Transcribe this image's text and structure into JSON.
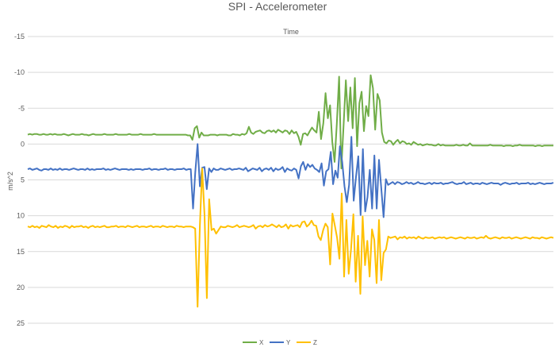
{
  "chart_data": {
    "type": "line",
    "title": "SPI - Accelerometer",
    "xlabel": "Time",
    "ylabel": "m/s^2",
    "y_axis_reversed": true,
    "ylim": [
      -15,
      25
    ],
    "yticks": [
      -15,
      -10,
      -5,
      0,
      5,
      10,
      15,
      20,
      25
    ],
    "ytick_labels": [
      "-15",
      "-10",
      "-5",
      "0",
      "5",
      "10",
      "15",
      "20",
      "25"
    ],
    "grid": true,
    "legend_position": "bottom",
    "series": [
      {
        "name": "X",
        "color": "#70AD47",
        "values": [
          -1.3,
          -1.4,
          -1.3,
          -1.4,
          -1.4,
          -1.3,
          -1.3,
          -1.4,
          -1.3,
          -1.3,
          -1.4,
          -1.3,
          -1.4,
          -1.3,
          -1.3,
          -1.3,
          -1.4,
          -1.3,
          -1.2,
          -1.3,
          -1.4,
          -1.3,
          -1.3,
          -1.3,
          -1.4,
          -1.3,
          -1.3,
          -1.2,
          -1.3,
          -1.4,
          -1.3,
          -1.3,
          -1.3,
          -1.3,
          -1.4,
          -1.3,
          -1.3,
          -1.3,
          -1.3,
          -1.4,
          -1.3,
          -1.3,
          -1.3,
          -1.3,
          -1.3,
          -1.4,
          -1.3,
          -1.3,
          -1.3,
          -1.3,
          -1.4,
          -1.3,
          -1.3,
          -1.3,
          -1.3,
          -1.3,
          -1.4,
          -1.3,
          -1.3,
          -1.3,
          -1.3,
          -1.3,
          -1.3,
          -1.3,
          -1.3,
          -1.3,
          -1.3,
          -1.3,
          -1.3,
          -1.3,
          -1.3,
          -1.2,
          -1.2,
          -0.6,
          -2.2,
          -2.5,
          -0.9,
          -1.6,
          -1.2,
          -1.2,
          -1.2,
          -1.3,
          -1.3,
          -1.3,
          -1.2,
          -1.3,
          -1.3,
          -1.3,
          -1.3,
          -1.2,
          -1.2,
          -1.4,
          -1.3,
          -1.3,
          -1.2,
          -1.4,
          -1.3,
          -1.5,
          -2.4,
          -1.6,
          -1.4,
          -1.7,
          -1.8,
          -1.9,
          -1.6,
          -1.5,
          -1.8,
          -1.9,
          -1.7,
          -1.9,
          -1.6,
          -2.0,
          -1.8,
          -1.6,
          -1.9,
          -1.8,
          -1.4,
          -1.9,
          -1.5,
          -1.7,
          -1.0,
          0.1,
          -1.4,
          -1.5,
          -1.2,
          -1.8,
          -2.3,
          -1.9,
          -1.6,
          -4.5,
          -0.7,
          -2.9,
          -7.1,
          -3.6,
          -5.4,
          -0.3,
          2.5,
          -2.8,
          -9.4,
          3.4,
          -2.7,
          -8.9,
          -3.2,
          -7.9,
          -2.2,
          -9.2,
          0.3,
          -5.7,
          -7.3,
          -1.8,
          -5.3,
          -3.9,
          -9.6,
          -7.8,
          -2.0,
          -7.0,
          -6.1,
          -1.6,
          -0.3,
          -0.1,
          -0.5,
          -0.4,
          0.1,
          -0.3,
          -0.6,
          -0.1,
          -0.4,
          -0.3,
          0.0,
          -0.1,
          0.1,
          -0.3,
          -0.1,
          0.1,
          0.0,
          0.2,
          0.1,
          0.0,
          0.1,
          0.1,
          0.2,
          0.2,
          0.0,
          0.2,
          0.1,
          0.2,
          0.2,
          0.2,
          0.2,
          0.2,
          0.1,
          0.2,
          0.2,
          0.1,
          0.2,
          0.2,
          -0.1,
          0.2,
          0.2,
          0.2,
          0.2,
          0.2,
          0.2,
          0.2,
          0.2,
          0.1,
          0.2,
          0.2,
          0.2,
          0.2,
          0.2,
          0.3,
          0.2,
          0.2,
          0.2,
          0.3,
          0.2,
          0.2,
          0.1,
          0.2,
          0.2,
          0.2,
          0.2,
          0.2,
          0.2,
          0.3,
          0.2,
          0.2,
          0.3,
          0.2,
          0.2,
          0.2,
          0.2,
          0.2
        ]
      },
      {
        "name": "Y",
        "color": "#4472C4",
        "values": [
          3.5,
          3.4,
          3.6,
          3.5,
          3.4,
          3.6,
          3.7,
          3.5,
          3.5,
          3.6,
          3.4,
          3.6,
          3.5,
          3.6,
          3.4,
          3.6,
          3.5,
          3.5,
          3.6,
          3.5,
          3.4,
          3.5,
          3.6,
          3.5,
          3.5,
          3.6,
          3.4,
          3.6,
          3.5,
          3.6,
          3.5,
          3.5,
          3.5,
          3.4,
          3.6,
          3.5,
          3.6,
          3.5,
          3.4,
          3.5,
          3.6,
          3.5,
          3.5,
          3.5,
          3.6,
          3.5,
          3.6,
          3.5,
          3.5,
          3.5,
          3.6,
          3.5,
          3.5,
          3.4,
          3.6,
          3.5,
          3.5,
          3.6,
          3.5,
          3.5,
          3.4,
          3.6,
          3.5,
          3.5,
          3.6,
          3.5,
          3.5,
          3.5,
          3.4,
          3.6,
          3.5,
          3.5,
          9.0,
          3.9,
          0.0,
          5.9,
          3.3,
          3.2,
          6.3,
          3.4,
          3.9,
          3.4,
          3.6,
          3.6,
          3.4,
          3.5,
          3.6,
          3.5,
          3.4,
          3.6,
          3.5,
          3.5,
          3.4,
          3.5,
          3.6,
          3.3,
          3.8,
          3.6,
          3.4,
          3.5,
          3.6,
          3.3,
          3.8,
          3.5,
          3.4,
          3.6,
          3.3,
          3.8,
          3.4,
          3.6,
          3.5,
          3.2,
          3.9,
          3.4,
          3.6,
          3.7,
          3.4,
          3.6,
          4.8,
          3.1,
          2.5,
          3.6,
          2.8,
          3.2,
          2.9,
          3.4,
          3.6,
          3.9,
          2.7,
          5.8,
          3.8,
          3.5,
          1.1,
          5.6,
          3.7,
          4.7,
          0.3,
          2.5,
          5.9,
          8.1,
          5.7,
          -1.0,
          7.9,
          4.6,
          1.7,
          9.9,
          0.7,
          9.4,
          7.4,
          3.6,
          9.0,
          1.6,
          9.0,
          2.2,
          6.2,
          10.2,
          4.9,
          5.7,
          5.5,
          5.3,
          5.6,
          5.3,
          5.4,
          5.6,
          5.5,
          5.3,
          5.5,
          5.4,
          5.6,
          5.5,
          5.3,
          5.5,
          5.5,
          5.6,
          5.5,
          5.4,
          5.6,
          5.4,
          5.5,
          5.5,
          5.4,
          5.6,
          5.5,
          5.5,
          5.4,
          5.3,
          5.5,
          5.6,
          5.5,
          5.5,
          5.3,
          5.6,
          5.5,
          5.4,
          5.6,
          5.5,
          5.5,
          5.6,
          5.4,
          5.5,
          5.6,
          5.5,
          5.4,
          5.5,
          5.5,
          5.5,
          5.7,
          5.5,
          5.4,
          5.5,
          5.6,
          5.5,
          5.5,
          5.4,
          5.6,
          5.5,
          5.5,
          5.5,
          5.4,
          5.6,
          5.5,
          5.6,
          5.5,
          5.4,
          5.5,
          5.6,
          5.5,
          5.5,
          5.5,
          5.4
        ]
      },
      {
        "name": "Z",
        "color": "#FFC000",
        "values": [
          11.5,
          11.6,
          11.4,
          11.6,
          11.5,
          11.7,
          11.4,
          11.5,
          11.6,
          11.3,
          11.5,
          11.6,
          11.4,
          11.7,
          11.5,
          11.6,
          11.4,
          11.5,
          11.7,
          11.4,
          11.6,
          11.5,
          11.5,
          11.4,
          11.6,
          11.5,
          11.7,
          11.5,
          11.4,
          11.6,
          11.5,
          11.6,
          11.5,
          11.4,
          11.6,
          11.6,
          11.5,
          11.5,
          11.4,
          11.6,
          11.5,
          11.5,
          11.6,
          11.4,
          11.5,
          11.6,
          11.5,
          11.4,
          11.6,
          11.5,
          11.5,
          11.6,
          11.5,
          11.4,
          11.6,
          11.5,
          11.5,
          11.6,
          11.4,
          11.5,
          11.6,
          11.5,
          11.5,
          11.6,
          11.4,
          11.5,
          11.5,
          11.6,
          11.5,
          11.5,
          11.5,
          11.6,
          11.8,
          22.7,
          11.4,
          3.4,
          10.0,
          21.5,
          7.7,
          12.0,
          11.8,
          12.5,
          12.0,
          11.5,
          11.6,
          11.6,
          11.4,
          11.5,
          11.6,
          11.5,
          11.3,
          11.6,
          11.5,
          11.4,
          11.5,
          11.6,
          11.5,
          11.3,
          11.8,
          11.5,
          11.4,
          11.6,
          11.3,
          11.5,
          11.4,
          11.2,
          11.4,
          11.6,
          11.3,
          11.6,
          11.5,
          11.2,
          11.8,
          11.3,
          11.5,
          11.4,
          11.3,
          11.6,
          10.9,
          10.8,
          11.5,
          11.2,
          10.7,
          11.3,
          11.4,
          12.9,
          13.4,
          12.0,
          11.1,
          11.6,
          16.8,
          9.7,
          11.3,
          13.1,
          16.0,
          6.9,
          18.5,
          10.6,
          18.1,
          14.6,
          9.8,
          19.2,
          12.8,
          20.9,
          10.1,
          16.9,
          13.5,
          18.5,
          11.9,
          13.4,
          19.4,
          10.6,
          19.0,
          15.2,
          14.7,
          12.9,
          13.1,
          13.0,
          12.9,
          13.3,
          13.0,
          13.1,
          12.9,
          13.2,
          13.0,
          13.1,
          13.0,
          13.2,
          12.9,
          13.1,
          13.2,
          13.0,
          13.1,
          13.1,
          13.0,
          13.2,
          13.1,
          13.0,
          13.1,
          13.0,
          13.2,
          13.1,
          13.0,
          13.1,
          13.2,
          13.1,
          13.0,
          13.1,
          13.2,
          13.0,
          13.1,
          13.1,
          13.0,
          13.2,
          13.1,
          13.0,
          13.1,
          12.8,
          13.1,
          13.2,
          13.1,
          13.0,
          13.1,
          13.2,
          13.0,
          13.1,
          13.1,
          13.0,
          13.2,
          13.1,
          13.0,
          13.1,
          13.2,
          13.1,
          13.0,
          13.1,
          13.2,
          13.0,
          13.1,
          13.1,
          13.2,
          13.0,
          13.1,
          13.2,
          13.1,
          13.0,
          13.1
        ]
      }
    ]
  }
}
